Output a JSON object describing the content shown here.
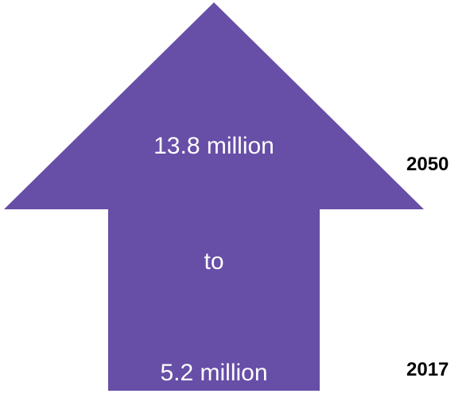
{
  "colors": {
    "arrow_fill": "#674ea7",
    "label_text": "#ffffff",
    "year_text": "#000000"
  },
  "arrow": {
    "top_label": "13.8 million",
    "middle_label": "to",
    "bottom_label": "5.2 million"
  },
  "years": {
    "top": "2050",
    "bottom": "2017"
  }
}
